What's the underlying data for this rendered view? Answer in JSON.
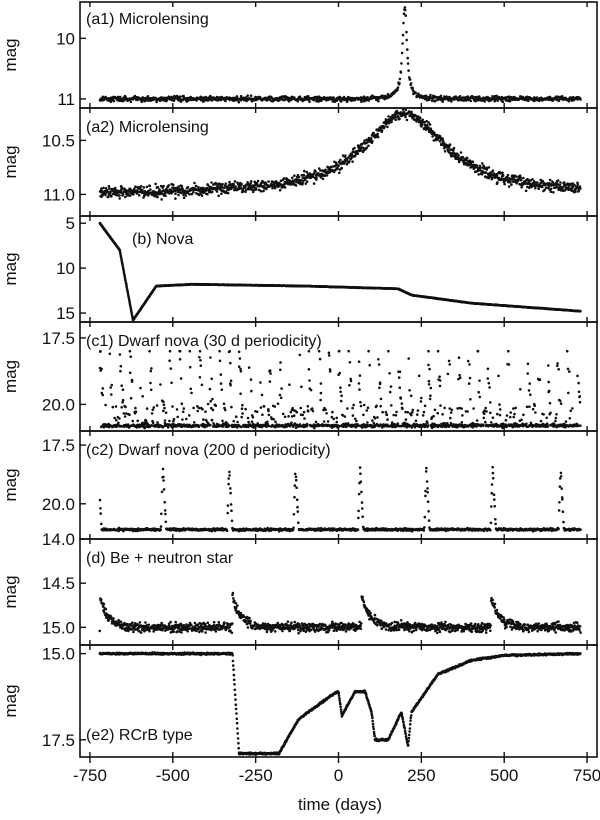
{
  "figure": {
    "xlabel": "time (days)",
    "ylabel": "mag"
  },
  "chart_data": [
    {
      "type": "scatter",
      "title": "(a1) Microlensing",
      "ylabel": "mag",
      "xlim": [
        -780,
        780
      ],
      "ylim": [
        11.15,
        9.4
      ],
      "y_inverted": true,
      "yticks": [
        10,
        11
      ],
      "ytick_labels": [
        "10",
        "11"
      ],
      "xticks": [
        -750,
        -500,
        -250,
        0,
        250,
        500,
        750
      ],
      "model": {
        "kind": "microlensing",
        "t0": 200,
        "base": 11.0,
        "peak": 9.5,
        "width": 8,
        "noise": 0.04,
        "n": 1000
      }
    },
    {
      "type": "scatter",
      "title": "(a2) Microlensing",
      "ylabel": "mag",
      "xlim": [
        -780,
        780
      ],
      "ylim": [
        11.2,
        10.2
      ],
      "y_inverted": true,
      "yticks": [
        10.5,
        11.0
      ],
      "ytick_labels": [
        "10.5",
        "11.0"
      ],
      "xticks": [
        -750,
        -500,
        -250,
        0,
        250,
        500,
        750
      ],
      "model": {
        "kind": "microlensing",
        "t0": 200,
        "base": 11.0,
        "peak": 10.25,
        "width": 150,
        "noise": 0.05,
        "n": 1300
      }
    },
    {
      "type": "line",
      "title": "(b) Nova",
      "ylabel": "mag",
      "xlim": [
        -780,
        780
      ],
      "ylim": [
        16.0,
        4.2
      ],
      "y_inverted": true,
      "yticks": [
        5,
        10,
        15
      ],
      "ytick_labels": [
        "5",
        "10",
        "15"
      ],
      "xticks": [
        -750,
        -500,
        -250,
        0,
        250,
        500,
        750
      ],
      "series": [
        {
          "name": "nova",
          "x": [
            -720,
            -660,
            -620,
            -550,
            -440,
            -100,
            180,
            220,
            400,
            730
          ],
          "y": [
            5.0,
            8.0,
            15.8,
            12.0,
            11.8,
            12.0,
            12.3,
            13.0,
            13.9,
            14.8
          ]
        }
      ]
    },
    {
      "type": "scatter",
      "title": "(c1) Dwarf nova (30 d periodicity)",
      "ylabel": "mag",
      "xlim": [
        -780,
        780
      ],
      "ylim": [
        21.0,
        16.9
      ],
      "y_inverted": true,
      "yticks": [
        17.5,
        20.0
      ],
      "ytick_labels": [
        "17.5",
        "20.0"
      ],
      "xticks": [
        -750,
        -500,
        -250,
        0,
        250,
        500,
        750
      ],
      "model": {
        "kind": "dwarfnova",
        "period": 30,
        "quiescent": 20.8,
        "peak": 18.1,
        "decay": 12,
        "noise": 0.05,
        "n": 1400
      }
    },
    {
      "type": "scatter",
      "title": "(c2) Dwarf nova (200 d periodicity)",
      "ylabel": "mag",
      "xlim": [
        -780,
        780
      ],
      "ylim": [
        21.5,
        16.9
      ],
      "y_inverted": true,
      "yticks": [
        17.5,
        20.0
      ],
      "ytick_labels": [
        "17.5",
        "20.0"
      ],
      "xticks": [
        -750,
        -500,
        -250,
        0,
        250,
        500,
        750
      ],
      "model": {
        "kind": "outbursts",
        "starts": [
          -725,
          -530,
          -330,
          -130,
          65,
          265,
          465,
          670
        ],
        "quiescent": 21.1,
        "peak": 18.4,
        "rise": 6,
        "decay": 10,
        "noise": 0.05,
        "n": 1100
      }
    },
    {
      "type": "scatter",
      "title": "(d) Be + neutron star",
      "ylabel": "mag",
      "xlim": [
        -780,
        780
      ],
      "ylim": [
        15.2,
        14.0
      ],
      "y_inverted": true,
      "yticks": [
        14.0,
        14.5,
        15.0
      ],
      "ytick_labels": [
        "14.0",
        "14.5",
        "15.0"
      ],
      "xticks": [
        -750,
        -500,
        -250,
        0,
        250,
        500,
        750
      ],
      "model": {
        "kind": "be",
        "starts": [
          -720,
          -320,
          70,
          460
        ],
        "quiescent": 15.0,
        "peak": 14.65,
        "decay": 25,
        "noise": 0.05,
        "n": 1400
      }
    },
    {
      "type": "line",
      "title": "(e2) RCrB type",
      "ylabel": "mag",
      "xlim": [
        -780,
        780
      ],
      "ylim": [
        18.0,
        14.75
      ],
      "y_inverted": true,
      "yticks": [
        15.0,
        17.5
      ],
      "ytick_labels": [
        "15.0",
        "17.5"
      ],
      "xticks": [
        -750,
        -500,
        -250,
        0,
        250,
        500,
        750
      ],
      "xtick_labels": [
        "-750",
        "-500",
        "-250",
        "0",
        "250",
        "500",
        "750"
      ],
      "series": [
        {
          "name": "rcrb",
          "x": [
            -720,
            -320,
            -300,
            -180,
            -120,
            -20,
            0,
            10,
            50,
            80,
            100,
            110,
            150,
            180,
            190,
            210,
            220,
            300,
            400,
            500,
            730
          ],
          "y": [
            15.0,
            15.0,
            17.9,
            17.9,
            16.9,
            16.2,
            16.1,
            16.8,
            16.1,
            16.1,
            16.7,
            17.5,
            17.5,
            16.9,
            16.7,
            17.7,
            16.7,
            15.6,
            15.2,
            15.05,
            15.0
          ]
        }
      ]
    }
  ]
}
